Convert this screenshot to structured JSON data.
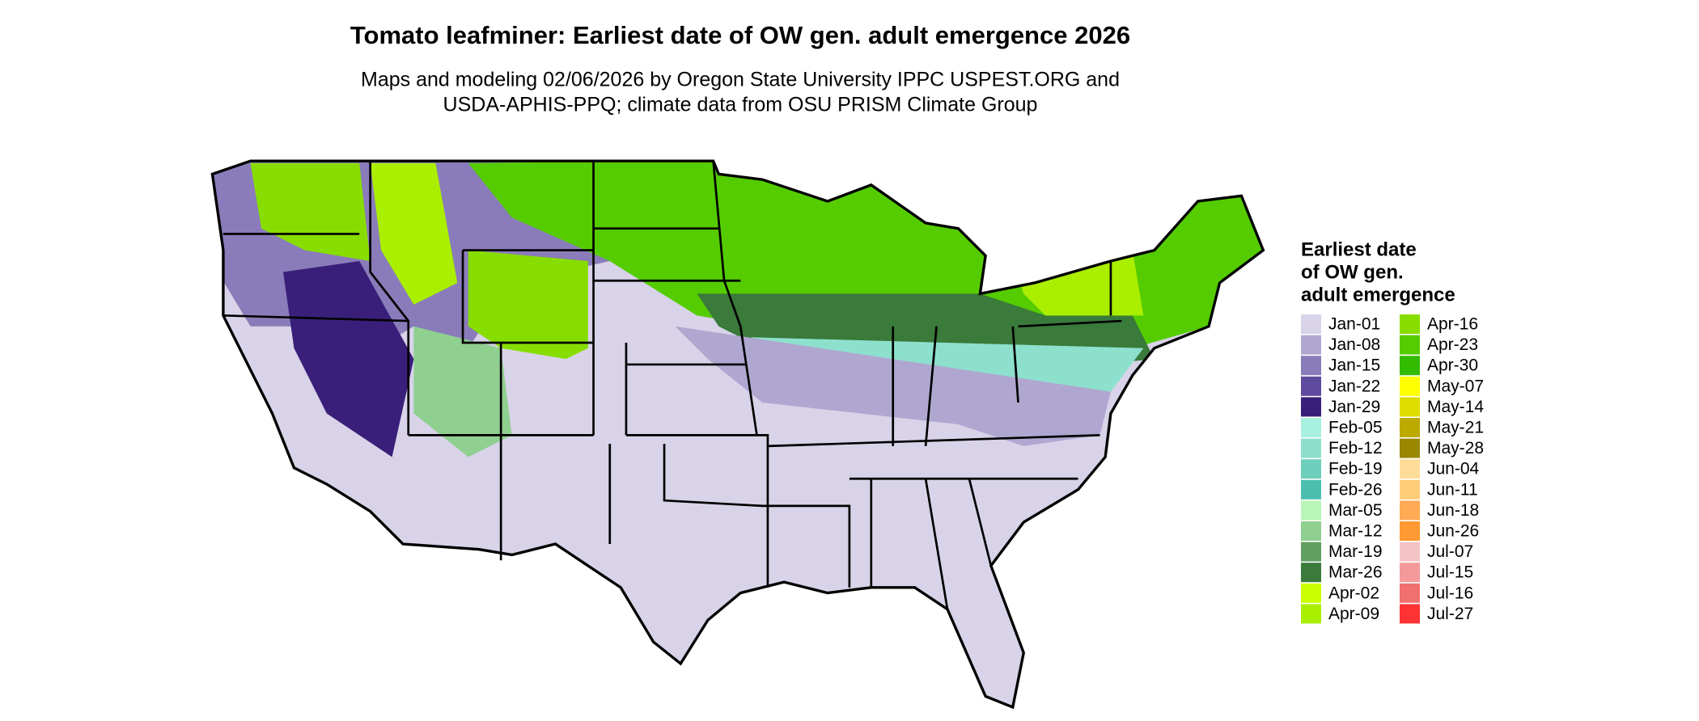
{
  "title": "Tomato leafminer: Earliest date of OW gen. adult emergence 2026",
  "subtitle": [
    "Maps and modeling 02/06/2026 by Oregon State University IPPC USPEST.ORG and",
    "USDA-APHIS-PPQ; climate data from OSU PRISM Climate Group"
  ],
  "legend": {
    "title": [
      "Earliest date",
      "of OW gen.",
      "adult emergence"
    ],
    "items": [
      {
        "label": "Jan-01",
        "color": "#d8d3e8"
      },
      {
        "label": "Jan-08",
        "color": "#b0a7d1"
      },
      {
        "label": "Jan-15",
        "color": "#8a7cba"
      },
      {
        "label": "Jan-22",
        "color": "#5e4a9e"
      },
      {
        "label": "Jan-29",
        "color": "#3a1f7a"
      },
      {
        "label": "Feb-05",
        "color": "#a8f0e0"
      },
      {
        "label": "Feb-12",
        "color": "#8de0cc"
      },
      {
        "label": "Feb-19",
        "color": "#6ed0bc"
      },
      {
        "label": "Feb-26",
        "color": "#4dbfb0"
      },
      {
        "label": "Mar-05",
        "color": "#b8f5b8"
      },
      {
        "label": "Mar-12",
        "color": "#8fcf8f"
      },
      {
        "label": "Mar-19",
        "color": "#60a060"
      },
      {
        "label": "Mar-26",
        "color": "#3a7a3a"
      },
      {
        "label": "Apr-02",
        "color": "#ccff00"
      },
      {
        "label": "Apr-09",
        "color": "#aaee00"
      },
      {
        "label": "Apr-16",
        "color": "#88dd00"
      },
      {
        "label": "Apr-23",
        "color": "#55cc00"
      },
      {
        "label": "Apr-30",
        "color": "#33bb00"
      },
      {
        "label": "May-07",
        "color": "#ffff00"
      },
      {
        "label": "May-14",
        "color": "#dddd00"
      },
      {
        "label": "May-21",
        "color": "#bbaa00"
      },
      {
        "label": "May-28",
        "color": "#998800"
      },
      {
        "label": "Jun-04",
        "color": "#ffdd99"
      },
      {
        "label": "Jun-11",
        "color": "#ffcc77"
      },
      {
        "label": "Jun-18",
        "color": "#ffaa55"
      },
      {
        "label": "Jun-26",
        "color": "#ff9933"
      },
      {
        "label": "Jul-07",
        "color": "#f4c4c4"
      },
      {
        "label": "Jul-15",
        "color": "#f49999"
      },
      {
        "label": "Jul-16",
        "color": "#f07070"
      },
      {
        "label": "Jul-27",
        "color": "#ff3333"
      }
    ]
  }
}
